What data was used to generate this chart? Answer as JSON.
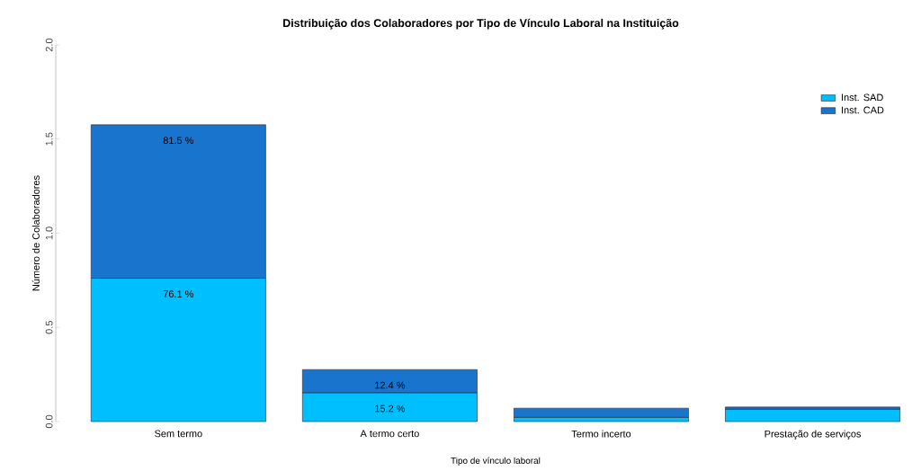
{
  "chart_data": {
    "type": "bar",
    "title": "Distribuição dos Colaboradores por Tipo de Vínculo Laboral na Instituição",
    "xlabel": "Tipo de vínculo laboral",
    "ylabel": "Número de Colaboradores",
    "categories": [
      "Sem termo",
      "A termo certo",
      "Termo incerto",
      "Prestação de serviços"
    ],
    "stacked": true,
    "legend": "top right",
    "ylim": [
      0,
      2
    ],
    "yticks": [
      {
        "value": 0,
        "label": "0.0"
      },
      {
        "value": 0.5,
        "label": "0.5"
      },
      {
        "value": 1,
        "label": "1.0"
      },
      {
        "value": 1.5,
        "label": "1.5"
      },
      {
        "value": 2,
        "label": "2.0"
      }
    ],
    "series": [
      {
        "name": "Inst. SAD",
        "color": "#00bfff",
        "values": [
          0.761,
          0.152,
          0.022,
          0.065
        ],
        "value_labels": [
          "76.1 %",
          "15.2 %",
          null,
          null
        ]
      },
      {
        "name": "Inst. CAD",
        "color": "#1874cd",
        "values": [
          0.815,
          0.124,
          0.049,
          0.012
        ],
        "value_labels": [
          "81.5 %",
          "12.4 %",
          null,
          null
        ]
      }
    ]
  }
}
